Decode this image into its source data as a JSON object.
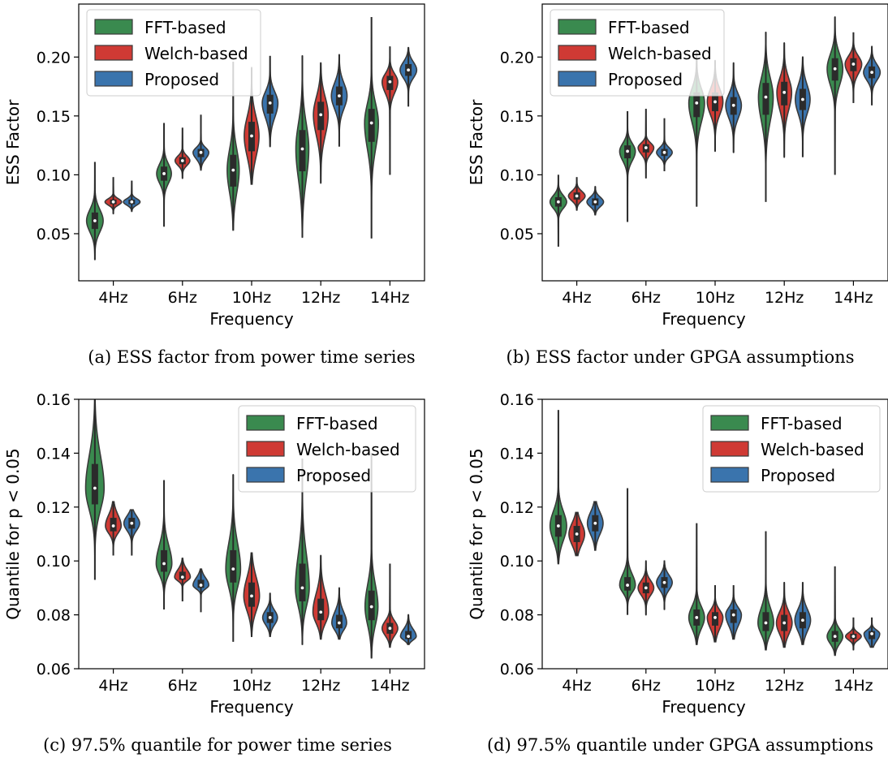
{
  "colors": {
    "series": [
      "#3a8a4f",
      "#cf3a34",
      "#3a74ad"
    ],
    "outline": "#3a3a3a",
    "box": "#2b2b2b",
    "median": "#ffffff"
  },
  "chart_data": [
    {
      "type": "violin",
      "caption": "(a) ESS factor from power time series",
      "xlabel": "Frequency",
      "ylabel": "ESS Factor",
      "categories": [
        "4Hz",
        "6Hz",
        "10Hz",
        "12Hz",
        "14Hz"
      ],
      "ylim": [
        0.01,
        0.245
      ],
      "yticks": [
        "0.05",
        "0.10",
        "0.15",
        "0.20"
      ],
      "legend_position": "top-left",
      "series": [
        {
          "name": "FFT-based",
          "groups": [
            {
              "min": 0.028,
              "q1": 0.054,
              "median": 0.061,
              "q3": 0.068,
              "max": 0.111,
              "width": 0.9
            },
            {
              "min": 0.056,
              "q1": 0.095,
              "median": 0.101,
              "q3": 0.107,
              "max": 0.144,
              "width": 0.8
            },
            {
              "min": 0.053,
              "q1": 0.09,
              "median": 0.104,
              "q3": 0.117,
              "max": 0.196,
              "width": 0.65
            },
            {
              "min": 0.047,
              "q1": 0.103,
              "median": 0.122,
              "q3": 0.138,
              "max": 0.201,
              "width": 0.7
            },
            {
              "min": 0.046,
              "q1": 0.128,
              "median": 0.144,
              "q3": 0.156,
              "max": 0.234,
              "width": 0.75
            }
          ]
        },
        {
          "name": "Welch-based",
          "groups": [
            {
              "min": 0.067,
              "q1": 0.075,
              "median": 0.077,
              "q3": 0.079,
              "max": 0.098,
              "width": 0.9
            },
            {
              "min": 0.097,
              "q1": 0.109,
              "median": 0.112,
              "q3": 0.115,
              "max": 0.14,
              "width": 0.8
            },
            {
              "min": 0.092,
              "q1": 0.12,
              "median": 0.133,
              "q3": 0.145,
              "max": 0.191,
              "width": 0.8
            },
            {
              "min": 0.093,
              "q1": 0.138,
              "median": 0.151,
              "q3": 0.162,
              "max": 0.195,
              "width": 0.8
            },
            {
              "min": 0.1,
              "q1": 0.172,
              "median": 0.179,
              "q3": 0.184,
              "max": 0.209,
              "width": 0.85
            }
          ]
        },
        {
          "name": "Proposed",
          "groups": [
            {
              "min": 0.069,
              "q1": 0.075,
              "median": 0.077,
              "q3": 0.079,
              "max": 0.095,
              "width": 0.9
            },
            {
              "min": 0.104,
              "q1": 0.115,
              "median": 0.119,
              "q3": 0.122,
              "max": 0.151,
              "width": 0.85
            },
            {
              "min": 0.124,
              "q1": 0.152,
              "median": 0.161,
              "q3": 0.168,
              "max": 0.201,
              "width": 0.85
            },
            {
              "min": 0.124,
              "q1": 0.159,
              "median": 0.167,
              "q3": 0.175,
              "max": 0.202,
              "width": 0.85
            },
            {
              "min": 0.158,
              "q1": 0.184,
              "median": 0.189,
              "q3": 0.194,
              "max": 0.208,
              "width": 0.9
            }
          ]
        }
      ]
    },
    {
      "type": "violin",
      "caption": "(b) ESS factor under GPGA assumptions",
      "xlabel": "Frequency",
      "ylabel": "ESS Factor",
      "categories": [
        "4Hz",
        "6Hz",
        "10Hz",
        "12Hz",
        "14Hz"
      ],
      "ylim": [
        0.01,
        0.245
      ],
      "yticks": [
        "0.05",
        "0.10",
        "0.15",
        "0.20"
      ],
      "legend_position": "top-left",
      "series": [
        {
          "name": "FFT-based",
          "groups": [
            {
              "min": 0.039,
              "q1": 0.073,
              "median": 0.077,
              "q3": 0.081,
              "max": 0.1,
              "width": 0.9
            },
            {
              "min": 0.06,
              "q1": 0.114,
              "median": 0.12,
              "q3": 0.125,
              "max": 0.154,
              "width": 0.85
            },
            {
              "min": 0.073,
              "q1": 0.149,
              "median": 0.161,
              "q3": 0.17,
              "max": 0.205,
              "width": 0.85
            },
            {
              "min": 0.077,
              "q1": 0.151,
              "median": 0.166,
              "q3": 0.178,
              "max": 0.221,
              "width": 0.8
            },
            {
              "min": 0.1,
              "q1": 0.18,
              "median": 0.19,
              "q3": 0.199,
              "max": 0.234,
              "width": 0.85
            }
          ]
        },
        {
          "name": "Welch-based",
          "groups": [
            {
              "min": 0.07,
              "q1": 0.079,
              "median": 0.082,
              "q3": 0.085,
              "max": 0.098,
              "width": 0.9
            },
            {
              "min": 0.097,
              "q1": 0.119,
              "median": 0.123,
              "q3": 0.126,
              "max": 0.156,
              "width": 0.85
            },
            {
              "min": 0.12,
              "q1": 0.154,
              "median": 0.162,
              "q3": 0.17,
              "max": 0.197,
              "width": 0.85
            },
            {
              "min": 0.115,
              "q1": 0.159,
              "median": 0.17,
              "q3": 0.179,
              "max": 0.212,
              "width": 0.8
            },
            {
              "min": 0.161,
              "q1": 0.188,
              "median": 0.194,
              "q3": 0.199,
              "max": 0.221,
              "width": 0.9
            }
          ]
        },
        {
          "name": "Proposed",
          "groups": [
            {
              "min": 0.066,
              "q1": 0.074,
              "median": 0.077,
              "q3": 0.08,
              "max": 0.09,
              "width": 0.9
            },
            {
              "min": 0.103,
              "q1": 0.116,
              "median": 0.119,
              "q3": 0.122,
              "max": 0.148,
              "width": 0.85
            },
            {
              "min": 0.119,
              "q1": 0.151,
              "median": 0.159,
              "q3": 0.166,
              "max": 0.195,
              "width": 0.85
            },
            {
              "min": 0.115,
              "q1": 0.155,
              "median": 0.164,
              "q3": 0.173,
              "max": 0.2,
              "width": 0.8
            },
            {
              "min": 0.159,
              "q1": 0.182,
              "median": 0.187,
              "q3": 0.192,
              "max": 0.209,
              "width": 0.9
            }
          ]
        }
      ]
    },
    {
      "type": "violin",
      "caption": "(c) 97.5% quantile for power time series",
      "xlabel": "Frequency",
      "ylabel": "Quantile for p < 0.05",
      "categories": [
        "4Hz",
        "6Hz",
        "10Hz",
        "12Hz",
        "14Hz"
      ],
      "ylim": [
        0.06,
        0.16
      ],
      "yticks": [
        "0.06",
        "0.08",
        "0.10",
        "0.12",
        "0.14",
        "0.16"
      ],
      "legend_position": "top-right",
      "series": [
        {
          "name": "FFT-based",
          "groups": [
            {
              "min": 0.093,
              "q1": 0.121,
              "median": 0.127,
              "q3": 0.136,
              "max": 0.16,
              "width": 1.0
            },
            {
              "min": 0.082,
              "q1": 0.096,
              "median": 0.099,
              "q3": 0.104,
              "max": 0.13,
              "width": 0.85
            },
            {
              "min": 0.07,
              "q1": 0.092,
              "median": 0.097,
              "q3": 0.104,
              "max": 0.132,
              "width": 0.8
            },
            {
              "min": 0.069,
              "q1": 0.085,
              "median": 0.09,
              "q3": 0.099,
              "max": 0.138,
              "width": 0.75
            },
            {
              "min": 0.064,
              "q1": 0.078,
              "median": 0.083,
              "q3": 0.089,
              "max": 0.14,
              "width": 0.7
            }
          ]
        },
        {
          "name": "Welch-based",
          "groups": [
            {
              "min": 0.102,
              "q1": 0.111,
              "median": 0.113,
              "q3": 0.116,
              "max": 0.122,
              "width": 0.85
            },
            {
              "min": 0.085,
              "q1": 0.093,
              "median": 0.094,
              "q3": 0.096,
              "max": 0.101,
              "width": 0.85
            },
            {
              "min": 0.072,
              "q1": 0.083,
              "median": 0.087,
              "q3": 0.092,
              "max": 0.103,
              "width": 0.85
            },
            {
              "min": 0.071,
              "q1": 0.078,
              "median": 0.081,
              "q3": 0.086,
              "max": 0.102,
              "width": 0.85
            },
            {
              "min": 0.068,
              "q1": 0.073,
              "median": 0.075,
              "q3": 0.077,
              "max": 0.099,
              "width": 0.85
            }
          ]
        },
        {
          "name": "Proposed",
          "groups": [
            {
              "min": 0.102,
              "q1": 0.112,
              "median": 0.114,
              "q3": 0.116,
              "max": 0.119,
              "width": 0.85
            },
            {
              "min": 0.081,
              "q1": 0.09,
              "median": 0.091,
              "q3": 0.093,
              "max": 0.097,
              "width": 0.85
            },
            {
              "min": 0.072,
              "q1": 0.077,
              "median": 0.079,
              "q3": 0.081,
              "max": 0.088,
              "width": 0.8
            },
            {
              "min": 0.071,
              "q1": 0.075,
              "median": 0.077,
              "q3": 0.08,
              "max": 0.09,
              "width": 0.8
            },
            {
              "min": 0.069,
              "q1": 0.071,
              "median": 0.072,
              "q3": 0.074,
              "max": 0.08,
              "width": 0.85
            }
          ]
        }
      ]
    },
    {
      "type": "violin",
      "caption": "(d) 97.5% quantile under GPGA assumptions",
      "xlabel": "Frequency",
      "ylabel": "Quantile for p < 0.05",
      "categories": [
        "4Hz",
        "6Hz",
        "10Hz",
        "12Hz",
        "14Hz"
      ],
      "ylim": [
        0.06,
        0.16
      ],
      "yticks": [
        "0.06",
        "0.08",
        "0.10",
        "0.12",
        "0.14",
        "0.16"
      ],
      "legend_position": "top-right",
      "series": [
        {
          "name": "FFT-based",
          "groups": [
            {
              "min": 0.099,
              "q1": 0.109,
              "median": 0.113,
              "q3": 0.117,
              "max": 0.156,
              "width": 0.9
            },
            {
              "min": 0.08,
              "q1": 0.089,
              "median": 0.091,
              "q3": 0.094,
              "max": 0.127,
              "width": 0.85
            },
            {
              "min": 0.069,
              "q1": 0.076,
              "median": 0.079,
              "q3": 0.082,
              "max": 0.114,
              "width": 0.85
            },
            {
              "min": 0.067,
              "q1": 0.074,
              "median": 0.077,
              "q3": 0.081,
              "max": 0.111,
              "width": 0.85
            },
            {
              "min": 0.065,
              "q1": 0.07,
              "median": 0.072,
              "q3": 0.074,
              "max": 0.098,
              "width": 0.85
            }
          ]
        },
        {
          "name": "Welch-based",
          "groups": [
            {
              "min": 0.102,
              "q1": 0.107,
              "median": 0.11,
              "q3": 0.113,
              "max": 0.118,
              "width": 0.85
            },
            {
              "min": 0.08,
              "q1": 0.088,
              "median": 0.09,
              "q3": 0.092,
              "max": 0.1,
              "width": 0.85
            },
            {
              "min": 0.07,
              "q1": 0.076,
              "median": 0.079,
              "q3": 0.081,
              "max": 0.091,
              "width": 0.85
            },
            {
              "min": 0.068,
              "q1": 0.074,
              "median": 0.077,
              "q3": 0.08,
              "max": 0.092,
              "width": 0.85
            },
            {
              "min": 0.067,
              "q1": 0.071,
              "median": 0.072,
              "q3": 0.073,
              "max": 0.079,
              "width": 0.85
            }
          ]
        },
        {
          "name": "Proposed",
          "groups": [
            {
              "min": 0.104,
              "q1": 0.111,
              "median": 0.114,
              "q3": 0.117,
              "max": 0.122,
              "width": 0.85
            },
            {
              "min": 0.082,
              "q1": 0.09,
              "median": 0.092,
              "q3": 0.094,
              "max": 0.1,
              "width": 0.85
            },
            {
              "min": 0.071,
              "q1": 0.077,
              "median": 0.08,
              "q3": 0.082,
              "max": 0.091,
              "width": 0.85
            },
            {
              "min": 0.069,
              "q1": 0.075,
              "median": 0.078,
              "q3": 0.081,
              "max": 0.092,
              "width": 0.85
            },
            {
              "min": 0.068,
              "q1": 0.071,
              "median": 0.073,
              "q3": 0.074,
              "max": 0.079,
              "width": 0.85
            }
          ]
        }
      ]
    }
  ]
}
